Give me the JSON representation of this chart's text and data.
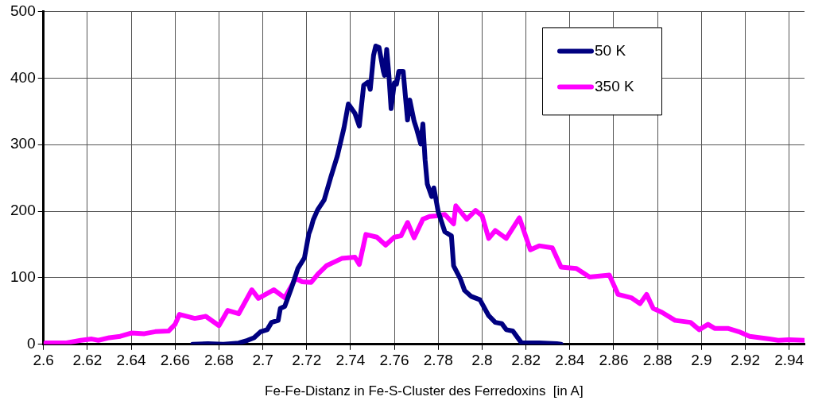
{
  "chart_data": {
    "type": "line",
    "xlabel": "Fe-Fe-Distanz in Fe-S-Cluster des Ferredoxins  [in A]",
    "xlim": [
      2.6,
      2.947
    ],
    "xticks": [
      2.6,
      2.62,
      2.64,
      2.66,
      2.68,
      2.7,
      2.72,
      2.74,
      2.76,
      2.78,
      2.8,
      2.82,
      2.84,
      2.86,
      2.88,
      2.9,
      2.92,
      2.94
    ],
    "ylim": [
      0,
      500
    ],
    "yticks": [
      0,
      100,
      200,
      300,
      400,
      500
    ],
    "grid": true,
    "legend": "top right",
    "marker": "none",
    "line_style": "solid",
    "series": [
      {
        "name": "50 K",
        "color": "#000080",
        "x": [
          2.668,
          2.675,
          2.682,
          2.689,
          2.693,
          2.696,
          2.699,
          2.702,
          2.704,
          2.707,
          2.708,
          2.71,
          2.713,
          2.714,
          2.716,
          2.719,
          2.721,
          2.722,
          2.723,
          2.725,
          2.728,
          2.731,
          2.734,
          2.737,
          2.739,
          2.742,
          2.744,
          2.746,
          2.748,
          2.749,
          2.7505,
          2.7515,
          2.753,
          2.755,
          2.7555,
          2.7565,
          2.7575,
          2.7585,
          2.76,
          2.761,
          2.762,
          2.764,
          2.766,
          2.767,
          2.769,
          2.77,
          2.772,
          2.773,
          2.774,
          2.775,
          2.777,
          2.778,
          2.78,
          2.783,
          2.786,
          2.787,
          2.79,
          2.792,
          2.795,
          2.799,
          2.803,
          2.806,
          2.809,
          2.811,
          2.814,
          2.818,
          2.826,
          2.834,
          2.836
        ],
        "values": [
          0,
          1,
          0,
          2,
          6,
          10,
          19,
          22,
          33,
          36,
          54,
          57,
          84,
          94,
          114,
          130,
          166,
          175,
          187,
          202,
          217,
          251,
          283,
          325,
          361,
          347,
          328,
          389,
          394,
          383,
          434,
          448,
          446,
          410,
          404,
          443,
          404,
          354,
          393,
          391,
          410,
          410,
          337,
          367,
          335,
          325,
          301,
          331,
          277,
          241,
          222,
          235,
          199,
          169,
          163,
          118,
          99,
          81,
          72,
          67,
          43,
          33,
          31,
          22,
          20,
          2,
          2,
          1,
          0
        ]
      },
      {
        "name": "350 K",
        "color": "#ff00ff",
        "x": [
          2.601,
          2.61,
          2.617,
          2.622,
          2.625,
          2.63,
          2.635,
          2.64,
          2.646,
          2.651,
          2.657,
          2.66,
          2.662,
          2.669,
          2.674,
          2.68,
          2.684,
          2.689,
          2.695,
          2.698,
          2.705,
          2.71,
          2.715,
          2.718,
          2.722,
          2.725,
          2.729,
          2.736,
          2.742,
          2.744,
          2.747,
          2.752,
          2.756,
          2.76,
          2.763,
          2.766,
          2.769,
          2.773,
          2.776,
          2.779,
          2.783,
          2.787,
          2.788,
          2.793,
          2.797,
          2.8,
          2.803,
          2.806,
          2.811,
          2.817,
          2.822,
          2.826,
          2.832,
          2.836,
          2.843,
          2.849,
          2.858,
          2.862,
          2.868,
          2.872,
          2.875,
          2.878,
          2.882,
          2.888,
          2.895,
          2.899,
          2.903,
          2.906,
          2.912,
          2.917,
          2.922,
          2.931,
          2.935,
          2.94,
          2.947
        ],
        "values": [
          2,
          2,
          6,
          8,
          6,
          10,
          12,
          17,
          16,
          19,
          20,
          30,
          45,
          39,
          42,
          28,
          51,
          46,
          82,
          69,
          82,
          70,
          99,
          94,
          93,
          105,
          118,
          129,
          131,
          120,
          165,
          161,
          149,
          161,
          163,
          183,
          160,
          188,
          192,
          193,
          195,
          181,
          208,
          188,
          201,
          193,
          159,
          171,
          159,
          190,
          142,
          148,
          145,
          116,
          114,
          101,
          104,
          75,
          70,
          61,
          75,
          54,
          48,
          36,
          33,
          22,
          30,
          24,
          24,
          19,
          12,
          8,
          6,
          7,
          6
        ]
      }
    ]
  }
}
